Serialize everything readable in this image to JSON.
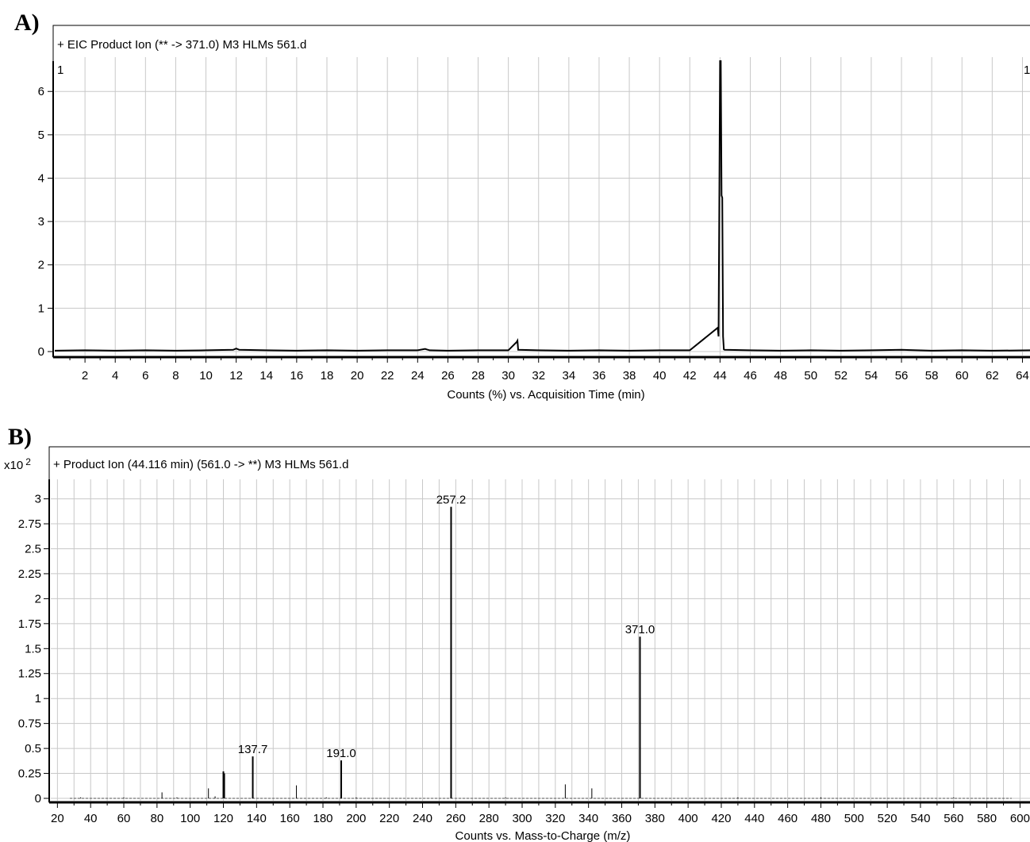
{
  "chart_data": [
    {
      "panel_label": "A)",
      "type": "line",
      "title": "+ EIC Product Ion (** -> 371.0) M3 HLMs 561.d",
      "xlabel": "Counts (%) vs. Acquisition Time (min)",
      "ylabel": "",
      "xlim": [
        0,
        64.5
      ],
      "ylim": [
        0,
        6.7
      ],
      "x_ticks": [
        2,
        4,
        6,
        8,
        10,
        12,
        14,
        16,
        18,
        20,
        22,
        24,
        26,
        28,
        30,
        32,
        34,
        36,
        38,
        40,
        42,
        44,
        46,
        48,
        50,
        52,
        54,
        56,
        58,
        60,
        62,
        64
      ],
      "y_ticks": [
        0,
        1,
        2,
        3,
        4,
        5,
        6
      ],
      "corner_labels": [
        "1",
        "1"
      ],
      "grid": true,
      "series": [
        {
          "x": [
            0,
            2,
            4,
            6,
            8,
            10,
            11.8,
            12.0,
            12.2,
            14,
            16,
            18,
            20,
            22,
            24,
            24.5,
            24.6,
            24.8,
            26,
            28,
            30,
            30.55,
            30.6,
            30.65,
            32,
            34,
            36,
            38,
            40,
            42,
            43.85,
            43.9,
            43.95,
            44.0,
            44.05,
            44.1,
            44.15,
            44.2,
            44.25,
            44.3,
            46,
            48,
            50,
            52,
            54,
            56,
            58,
            60,
            62,
            64.5
          ],
          "y": [
            0.02,
            0.03,
            0.02,
            0.03,
            0.02,
            0.03,
            0.04,
            0.07,
            0.04,
            0.03,
            0.02,
            0.03,
            0.02,
            0.03,
            0.03,
            0.06,
            0.05,
            0.03,
            0.02,
            0.03,
            0.03,
            0.22,
            0.25,
            0.04,
            0.03,
            0.02,
            0.03,
            0.02,
            0.03,
            0.03,
            0.55,
            0.35,
            3.2,
            6.7,
            6.7,
            3.6,
            3.55,
            0.35,
            0.05,
            0.04,
            0.03,
            0.02,
            0.03,
            0.02,
            0.03,
            0.04,
            0.02,
            0.03,
            0.02,
            0.03
          ]
        }
      ]
    },
    {
      "panel_label": "B)",
      "type": "bar",
      "title": "+ Product Ion (44.116 min) (561.0 -> **) M3 HLMs 561.d",
      "xlabel": "Counts vs. Mass-to-Charge (m/z)",
      "ylabel": "",
      "y_multiplier": "x10",
      "y_multiplier_exp": "2",
      "xlim": [
        16,
        606
      ],
      "ylim": [
        0,
        3.1
      ],
      "x_ticks": [
        20,
        40,
        60,
        80,
        100,
        120,
        140,
        160,
        180,
        200,
        220,
        240,
        260,
        280,
        300,
        320,
        340,
        360,
        380,
        400,
        420,
        440,
        460,
        480,
        500,
        520,
        540,
        560,
        580,
        600
      ],
      "y_ticks": [
        "0",
        "0.25",
        "0.5",
        "0.75",
        "1",
        "1.25",
        "1.5",
        "1.75",
        "2",
        "2.25",
        "2.5",
        "2.75",
        "3"
      ],
      "grid": true,
      "peaks": {
        "x": [
          34,
          60,
          83,
          92,
          111,
          115,
          120,
          120.5,
          137.7,
          164,
          182,
          191.0,
          200,
          257.2,
          290,
          326,
          342,
          371.0,
          430,
          480,
          560
        ],
        "y": [
          0.01,
          0.01,
          0.06,
          0.01,
          0.1,
          0.02,
          0.27,
          0.25,
          0.42,
          0.13,
          0.01,
          0.38,
          0.01,
          2.92,
          0.01,
          0.14,
          0.1,
          1.62,
          0.01,
          0.01,
          0.01
        ]
      },
      "peak_labels": [
        {
          "x": 137.7,
          "y": 0.42,
          "text": "137.7"
        },
        {
          "x": 191.0,
          "y": 0.38,
          "text": "191.0"
        },
        {
          "x": 257.2,
          "y": 2.92,
          "text": "257.2"
        },
        {
          "x": 371.0,
          "y": 1.62,
          "text": "371.0"
        }
      ]
    }
  ]
}
